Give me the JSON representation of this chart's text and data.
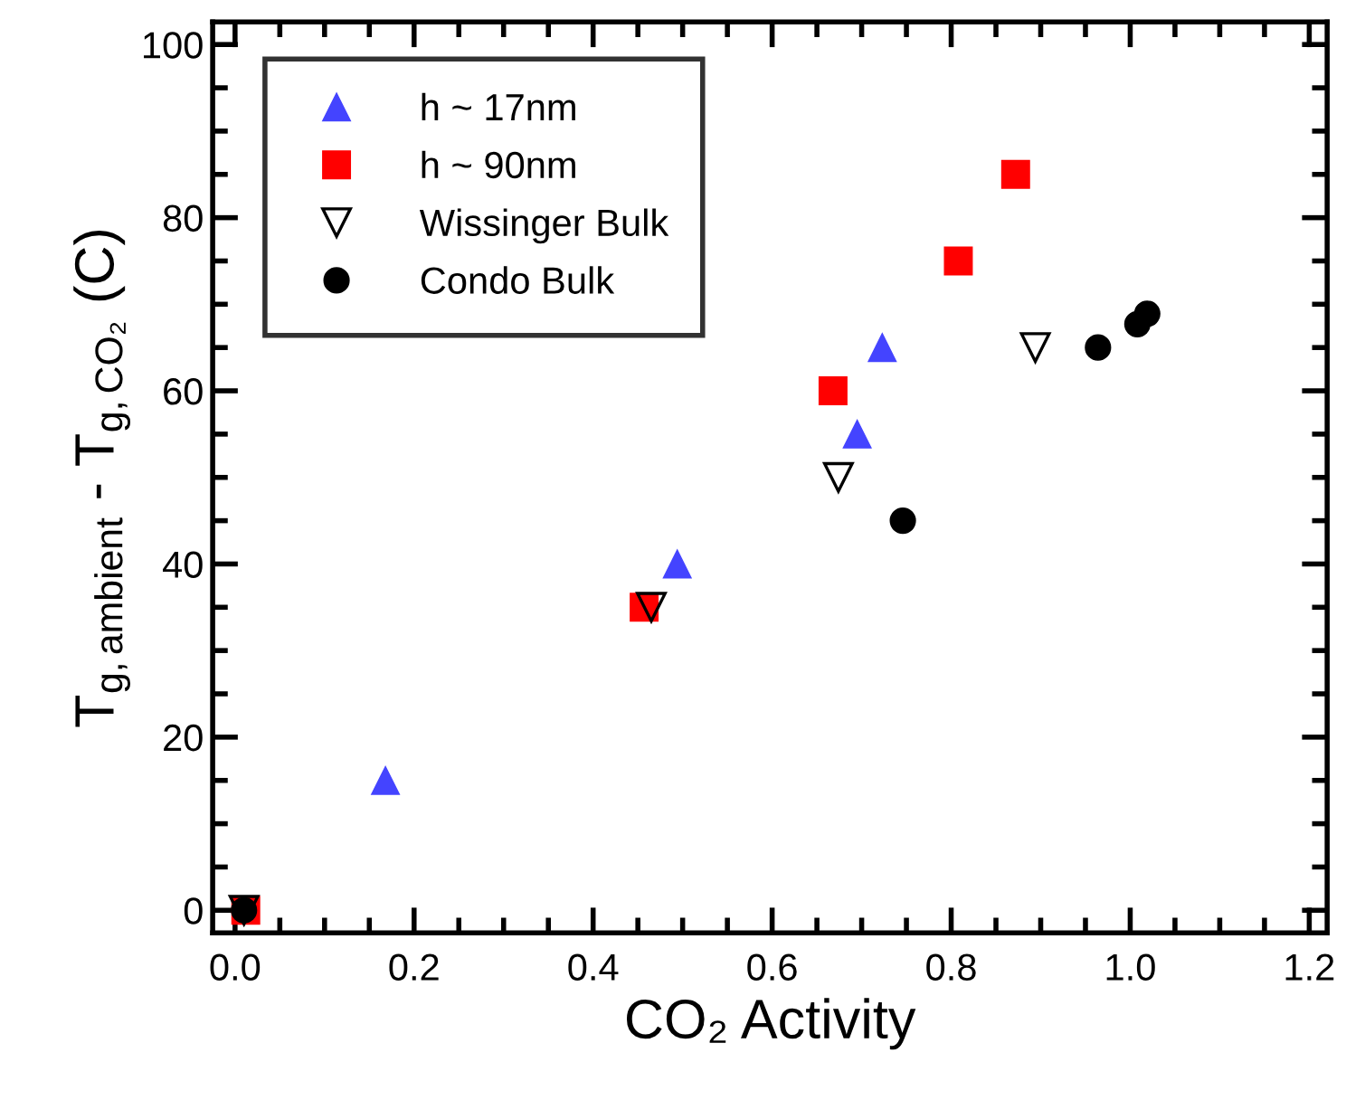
{
  "chart_data": {
    "type": "scatter",
    "xlabel": "CO₂ Activity",
    "ylabel": "T$_{g,ambient}$ - T$_{g,CO₂}$ (C)",
    "xlim": [
      -0.025,
      1.22
    ],
    "ylim": [
      -2.6,
      102.6
    ],
    "xticks": [
      {
        "value": 0,
        "label": "0.0"
      },
      0.2,
      0.4,
      0.6,
      0.8,
      {
        "value": 1,
        "label": "1.0"
      },
      1.2
    ],
    "yticks": [
      0,
      20,
      40,
      60,
      80,
      100
    ],
    "grid": false,
    "legend": "top left",
    "series": [
      {
        "name": "h ~ 17nm",
        "color": "#4444ff",
        "marker": "triangle",
        "x": [
          0.168,
          0.494,
          0.695,
          0.723
        ],
        "values": [
          15,
          40,
          55,
          65
        ]
      },
      {
        "name": "h ~ 90nm",
        "color": "#ff0000",
        "marker": "square",
        "x": [
          0.012,
          0.457,
          0.668,
          0.808,
          0.872
        ],
        "values": [
          0,
          35,
          60,
          75,
          85
        ]
      },
      {
        "name": "Wissinger Bulk",
        "color": "#000000",
        "marker": "triangle_down",
        "x": [
          0.01,
          0.465,
          0.674,
          0.894
        ],
        "values": [
          0,
          35,
          50,
          65
        ]
      },
      {
        "name": "Condo Bulk",
        "color": "#000000",
        "marker": "circle",
        "x": [
          0.01,
          0.746,
          0.964,
          1.008,
          1.019
        ],
        "values": [
          0,
          45,
          65,
          67.7,
          68.9
        ]
      }
    ]
  }
}
